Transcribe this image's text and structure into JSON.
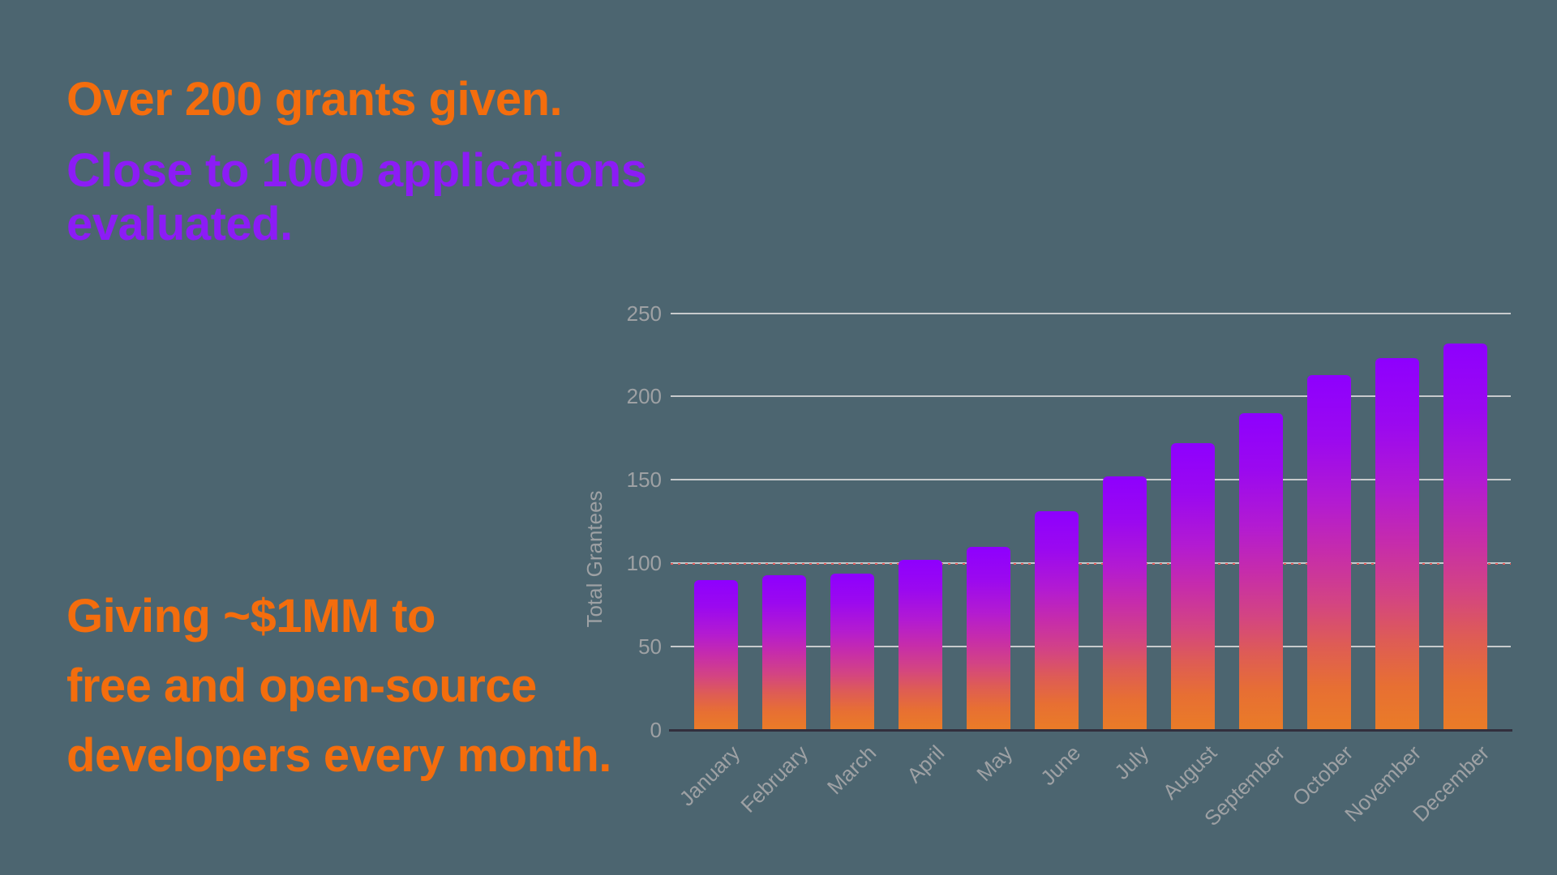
{
  "slide": {
    "background_color": "#4C6570",
    "headline_grants": {
      "text": "Over 200 grants given.",
      "color": "#F46D0D"
    },
    "headline_applications": {
      "lines": [
        "Close to 1000 applications",
        "evaluated."
      ],
      "color": "#8C1CF5"
    },
    "headline_giving": {
      "lines": [
        "Giving ~$1MM to",
        "free and open-source",
        "developers every month."
      ],
      "color": "#F46D0D"
    }
  },
  "chart_data": {
    "type": "bar",
    "title": "",
    "xlabel": "",
    "ylabel": "Total Grantees",
    "categories": [
      "January",
      "February",
      "March",
      "April",
      "May",
      "June",
      "July",
      "August",
      "September",
      "October",
      "November",
      "December"
    ],
    "values": [
      90,
      93,
      94,
      102,
      110,
      131,
      152,
      172,
      190,
      213,
      223,
      232
    ],
    "ylim": [
      0,
      250
    ],
    "yticks": [
      0,
      50,
      100,
      150,
      200,
      250
    ],
    "grid": true,
    "legend": false,
    "x_tick_rotation_deg": -45,
    "reference_line": {
      "value": 100,
      "style": "dashed",
      "color": "#E05A5A"
    },
    "bar_gradient_top_color": "#8E00FE",
    "bar_gradient_bottom_color": "#EA7C27",
    "gridline_color": "#C7CACC",
    "axis_line_color": "#322F3D",
    "tick_label_color": "#9EA1A4"
  }
}
